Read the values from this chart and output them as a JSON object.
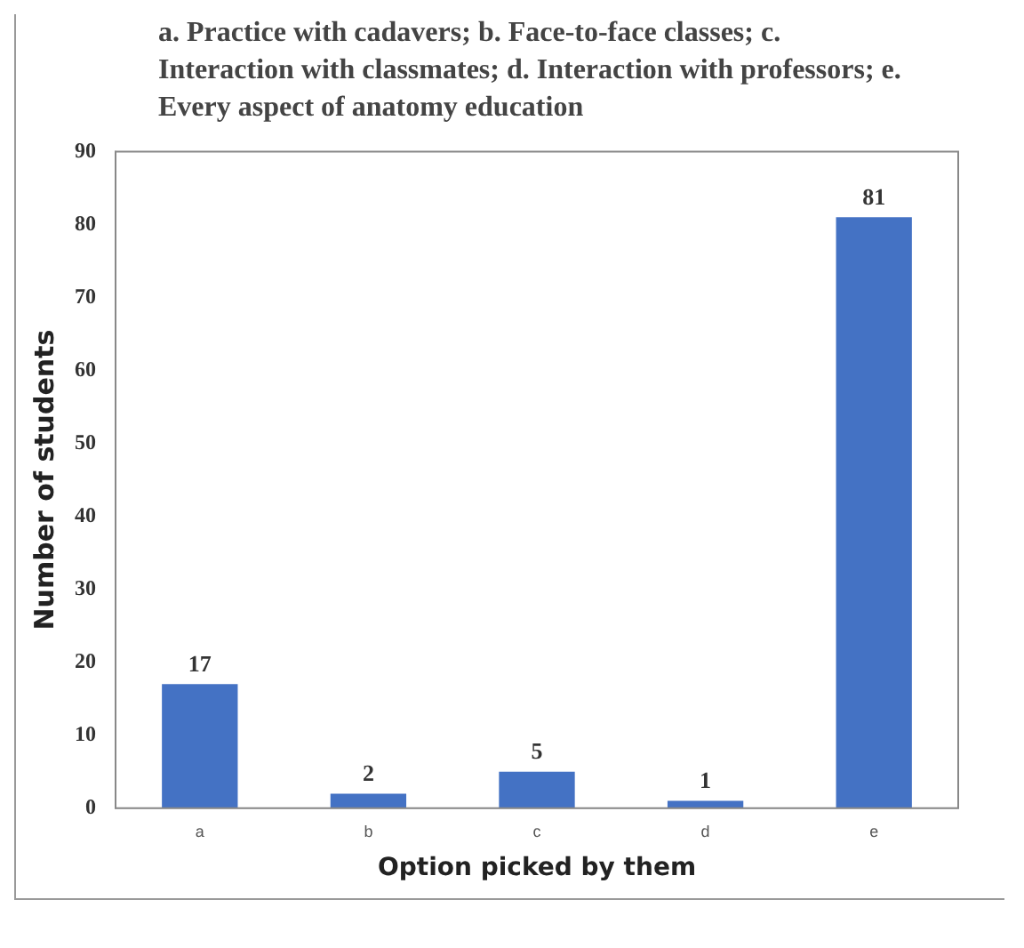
{
  "chart_data": {
    "type": "bar",
    "title": "a. Practice with cadavers; b. Face-to-face classes; c. Interaction with classmates; d. Interaction with professors; e. Every aspect of anatomy education",
    "xlabel": "Option picked by them",
    "ylabel": "Number of students",
    "categories": [
      "a",
      "b",
      "c",
      "d",
      "e"
    ],
    "values": [
      17,
      2,
      5,
      1,
      81
    ],
    "color": "#4472c4",
    "ylim": [
      0,
      90
    ],
    "yticks": [
      0,
      10,
      20,
      30,
      40,
      50,
      60,
      70,
      80,
      90
    ],
    "grid": false,
    "data_labels": true
  }
}
